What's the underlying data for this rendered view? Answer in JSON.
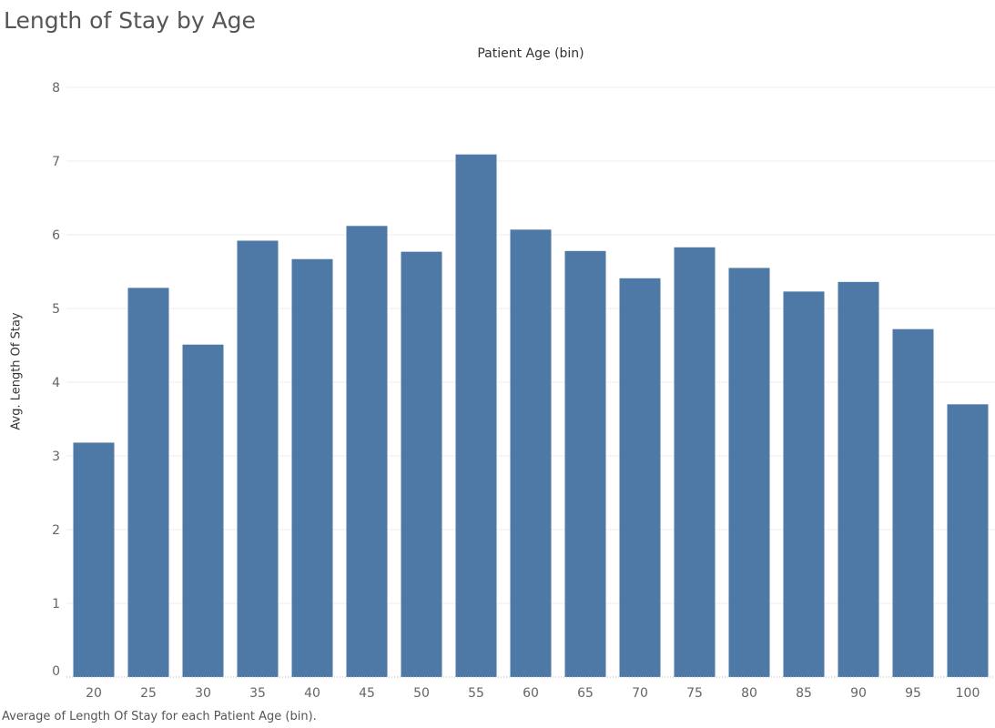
{
  "chart_data": {
    "type": "bar",
    "title": "Length of Stay by Age",
    "x_header": "Patient Age (bin)",
    "ylabel": "Avg. Length Of Stay",
    "caption": "Average of Length Of Stay for each Patient Age (bin).",
    "categories": [
      "20",
      "25",
      "30",
      "35",
      "40",
      "45",
      "50",
      "55",
      "60",
      "65",
      "70",
      "75",
      "80",
      "85",
      "90",
      "95",
      "100"
    ],
    "values": [
      3.18,
      5.28,
      4.51,
      5.92,
      5.67,
      6.12,
      5.77,
      7.09,
      6.07,
      5.78,
      5.41,
      5.83,
      5.55,
      5.23,
      5.36,
      4.72,
      3.7
    ],
    "ylim": [
      0,
      8.1
    ],
    "yticks": [
      0,
      1,
      2,
      3,
      4,
      5,
      6,
      7,
      8
    ],
    "bar_color": "#4e79a7",
    "grid": true
  }
}
